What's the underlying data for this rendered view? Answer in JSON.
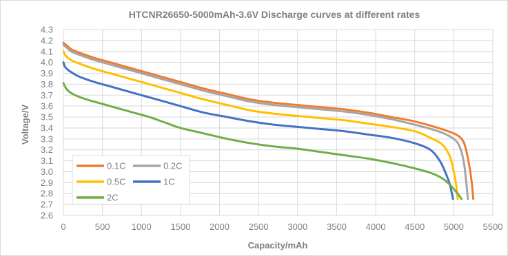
{
  "chart_data": {
    "type": "line",
    "title": "HTCNR26650-5000mAh-3.6V Discharge curves at different rates",
    "xlabel": "Capacity/mAh",
    "ylabel": "Voltage/V",
    "xlim": [
      0,
      5500
    ],
    "ylim": [
      2.6,
      4.3
    ],
    "x_ticks": [
      0,
      500,
      1000,
      1500,
      2000,
      2500,
      3000,
      3500,
      4000,
      4500,
      5000,
      5500
    ],
    "y_ticks": [
      2.6,
      2.7,
      2.8,
      2.9,
      3.0,
      3.1,
      3.2,
      3.3,
      3.4,
      3.5,
      3.6,
      3.7,
      3.8,
      3.9,
      4.0,
      4.1,
      4.2,
      4.3
    ],
    "grid": true,
    "legend_position": "bottom-left",
    "series": [
      {
        "name": "0.1C",
        "color": "#ed7d31",
        "points": [
          [
            0,
            4.18
          ],
          [
            50,
            4.15
          ],
          [
            100,
            4.12
          ],
          [
            200,
            4.09
          ],
          [
            400,
            4.04
          ],
          [
            600,
            4.0
          ],
          [
            800,
            3.96
          ],
          [
            1000,
            3.92
          ],
          [
            1200,
            3.88
          ],
          [
            1500,
            3.82
          ],
          [
            1800,
            3.76
          ],
          [
            2100,
            3.71
          ],
          [
            2400,
            3.66
          ],
          [
            2700,
            3.63
          ],
          [
            3000,
            3.61
          ],
          [
            3300,
            3.59
          ],
          [
            3600,
            3.57
          ],
          [
            3900,
            3.54
          ],
          [
            4200,
            3.5
          ],
          [
            4500,
            3.46
          ],
          [
            4800,
            3.4
          ],
          [
            5000,
            3.35
          ],
          [
            5100,
            3.3
          ],
          [
            5150,
            3.22
          ],
          [
            5200,
            3.05
          ],
          [
            5230,
            2.9
          ],
          [
            5250,
            2.75
          ]
        ]
      },
      {
        "name": "0.2C",
        "color": "#a5a5a5",
        "points": [
          [
            0,
            4.16
          ],
          [
            50,
            4.13
          ],
          [
            100,
            4.1
          ],
          [
            200,
            4.07
          ],
          [
            400,
            4.02
          ],
          [
            600,
            3.98
          ],
          [
            800,
            3.94
          ],
          [
            1000,
            3.9
          ],
          [
            1200,
            3.86
          ],
          [
            1500,
            3.8
          ],
          [
            1800,
            3.74
          ],
          [
            2100,
            3.69
          ],
          [
            2400,
            3.64
          ],
          [
            2700,
            3.61
          ],
          [
            3000,
            3.59
          ],
          [
            3300,
            3.57
          ],
          [
            3600,
            3.55
          ],
          [
            3900,
            3.52
          ],
          [
            4200,
            3.48
          ],
          [
            4500,
            3.43
          ],
          [
            4800,
            3.37
          ],
          [
            5000,
            3.3
          ],
          [
            5080,
            3.22
          ],
          [
            5130,
            3.08
          ],
          [
            5160,
            2.9
          ],
          [
            5180,
            2.75
          ]
        ]
      },
      {
        "name": "0.5C",
        "color": "#ffc000",
        "points": [
          [
            0,
            4.1
          ],
          [
            30,
            4.06
          ],
          [
            100,
            4.02
          ],
          [
            200,
            3.99
          ],
          [
            400,
            3.94
          ],
          [
            600,
            3.9
          ],
          [
            800,
            3.86
          ],
          [
            1000,
            3.82
          ],
          [
            1200,
            3.78
          ],
          [
            1500,
            3.72
          ],
          [
            1800,
            3.66
          ],
          [
            2100,
            3.61
          ],
          [
            2400,
            3.56
          ],
          [
            2700,
            3.53
          ],
          [
            3000,
            3.51
          ],
          [
            3300,
            3.49
          ],
          [
            3600,
            3.47
          ],
          [
            3900,
            3.44
          ],
          [
            4200,
            3.41
          ],
          [
            4500,
            3.37
          ],
          [
            4700,
            3.31
          ],
          [
            4850,
            3.25
          ],
          [
            4950,
            3.14
          ],
          [
            5000,
            3.0
          ],
          [
            5030,
            2.88
          ],
          [
            5050,
            2.75
          ]
        ]
      },
      {
        "name": "1C",
        "color": "#4472c4",
        "points": [
          [
            0,
            4.0
          ],
          [
            20,
            3.96
          ],
          [
            80,
            3.92
          ],
          [
            200,
            3.87
          ],
          [
            400,
            3.82
          ],
          [
            600,
            3.78
          ],
          [
            800,
            3.74
          ],
          [
            1000,
            3.7
          ],
          [
            1200,
            3.66
          ],
          [
            1500,
            3.6
          ],
          [
            1800,
            3.54
          ],
          [
            2100,
            3.5
          ],
          [
            2400,
            3.46
          ],
          [
            2700,
            3.43
          ],
          [
            3000,
            3.41
          ],
          [
            3300,
            3.39
          ],
          [
            3600,
            3.37
          ],
          [
            3900,
            3.34
          ],
          [
            4200,
            3.31
          ],
          [
            4500,
            3.26
          ],
          [
            4700,
            3.2
          ],
          [
            4820,
            3.1
          ],
          [
            4900,
            2.98
          ],
          [
            4950,
            2.88
          ],
          [
            4990,
            2.75
          ]
        ]
      },
      {
        "name": "2C",
        "color": "#70ad47",
        "points": [
          [
            0,
            3.81
          ],
          [
            20,
            3.78
          ],
          [
            60,
            3.74
          ],
          [
            150,
            3.7
          ],
          [
            300,
            3.66
          ],
          [
            500,
            3.62
          ],
          [
            700,
            3.58
          ],
          [
            900,
            3.54
          ],
          [
            1100,
            3.5
          ],
          [
            1300,
            3.45
          ],
          [
            1500,
            3.4
          ],
          [
            1800,
            3.35
          ],
          [
            2100,
            3.3
          ],
          [
            2400,
            3.26
          ],
          [
            2700,
            3.23
          ],
          [
            3000,
            3.21
          ],
          [
            3300,
            3.18
          ],
          [
            3600,
            3.15
          ],
          [
            3900,
            3.12
          ],
          [
            4200,
            3.08
          ],
          [
            4500,
            3.03
          ],
          [
            4700,
            2.99
          ],
          [
            4850,
            2.94
          ],
          [
            4950,
            2.88
          ],
          [
            5000,
            2.84
          ],
          [
            5050,
            2.8
          ],
          [
            5100,
            2.75
          ]
        ]
      }
    ]
  }
}
